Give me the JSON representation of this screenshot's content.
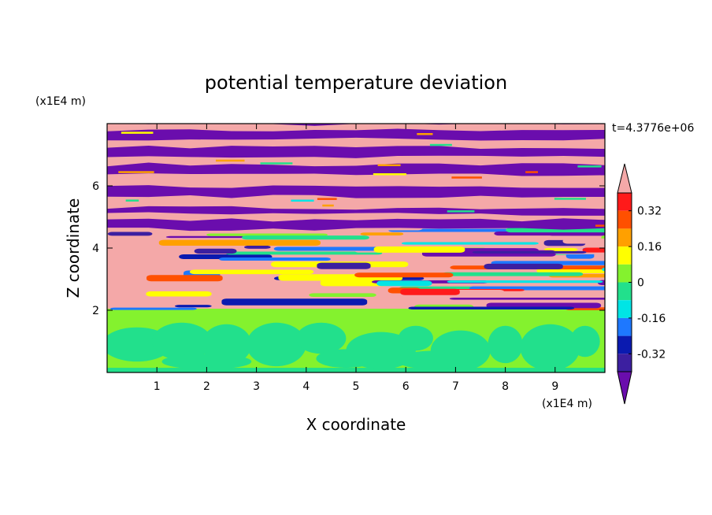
{
  "chart_data": {
    "type": "heatmap",
    "title": "potential temperature deviation",
    "xlabel": "X coordinate",
    "ylabel": "Z coordinate",
    "x_unit": "(x1E4 m)",
    "y_unit": "(x1E4 m)",
    "time_label": "t=4.3776e+06",
    "xlim": [
      0,
      10
    ],
    "ylim": [
      0,
      8
    ],
    "x_ticks": [
      1,
      2,
      3,
      4,
      5,
      6,
      7,
      8,
      9
    ],
    "y_ticks": [
      2,
      4,
      6
    ],
    "x_tick_labels": [
      "1",
      "2",
      "3",
      "4",
      "5",
      "6",
      "7",
      "8",
      "9"
    ],
    "y_tick_labels": [
      "2",
      "4",
      "6"
    ],
    "colorbar": {
      "levels": [
        -0.4,
        -0.32,
        -0.24,
        -0.16,
        -0.08,
        0,
        0.08,
        0.16,
        0.24,
        0.32,
        0.4
      ],
      "colors": [
        "#6a0dad",
        "#3c1fa0",
        "#0a1ab0",
        "#1e78ff",
        "#00e5e5",
        "#22e08c",
        "#84f22e",
        "#ffff00",
        "#ffa000",
        "#ff5000",
        "#ff1a1a",
        "#f4a8a8"
      ],
      "tick_labels": [
        "0.32",
        "0.16",
        "0",
        "-0.16",
        "-0.32"
      ],
      "tick_values": [
        0.32,
        0.16,
        0,
        -0.16,
        -0.32
      ],
      "extend": "both"
    },
    "regions": [
      {
        "z_range": [
          0,
          2
        ],
        "description_values": [
          0,
          0.08
        ],
        "pattern": "mixed green patches"
      },
      {
        "z_range": [
          2,
          4.5
        ],
        "description_values": [
          -0.4,
          0.4
        ],
        "pattern": "turbulent multicolor layers"
      },
      {
        "z_range": [
          4.5,
          8
        ],
        "description_values": [
          -0.4,
          0.4
        ],
        "pattern": "alternating purple and pink horizontal bands"
      }
    ]
  }
}
